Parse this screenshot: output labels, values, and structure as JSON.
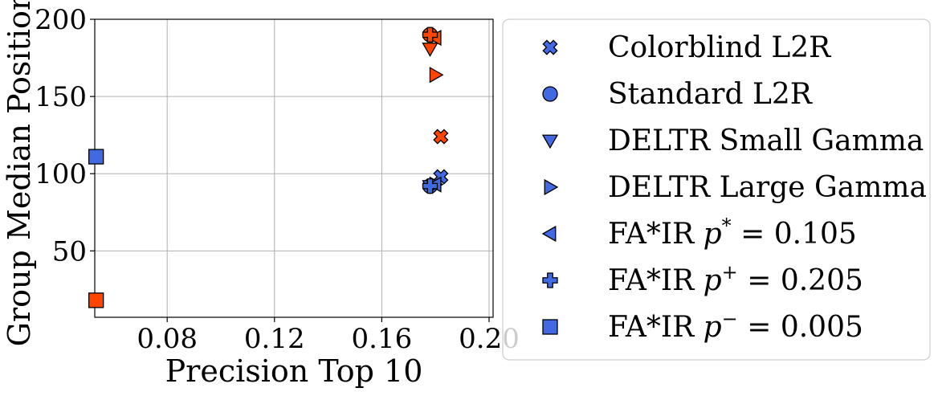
{
  "chart_data": {
    "type": "scatter",
    "title": "",
    "xlabel": "Precision Top 10",
    "ylabel": "Group Median Position",
    "xlim": [
      0.053,
      0.2015
    ],
    "ylim": [
      7,
      200
    ],
    "xticks": [
      0.08,
      0.12,
      0.16,
      0.2
    ],
    "xtick_labels": [
      "0.08",
      "0.12",
      "0.16",
      "0.20"
    ],
    "yticks": [
      50,
      100,
      150,
      200
    ],
    "ytick_labels": [
      "50",
      "100",
      "150",
      "200"
    ],
    "grid": true,
    "legend_position": "outside-right",
    "group_colors": {
      "blue": "#4169e1",
      "red": "#ff4500"
    },
    "series": [
      {
        "name": "Colorblind L2R",
        "marker": "x-filled",
        "points": [
          {
            "x": 0.182,
            "y": 98,
            "group": "blue"
          },
          {
            "x": 0.182,
            "y": 124,
            "group": "red"
          }
        ]
      },
      {
        "name": "Standard L2R",
        "marker": "circle",
        "points": [
          {
            "x": 0.178,
            "y": 92,
            "group": "blue"
          },
          {
            "x": 0.178,
            "y": 190,
            "group": "red"
          }
        ]
      },
      {
        "name": "DELTR Small Gamma",
        "marker": "triangle-down",
        "points": [
          {
            "x": 0.178,
            "y": 92,
            "group": "blue"
          },
          {
            "x": 0.178,
            "y": 181,
            "group": "red"
          }
        ]
      },
      {
        "name": "DELTR Large Gamma",
        "marker": "triangle-right",
        "points": [
          {
            "x": 0.18,
            "y": 93,
            "group": "blue"
          },
          {
            "x": 0.18,
            "y": 164,
            "group": "red"
          }
        ]
      },
      {
        "name": "FA*IR p* = 0.105",
        "legend_text": {
          "prefix": "FA*IR ",
          "var": "p",
          "sup": "*",
          "suffix": " = 0.105"
        },
        "marker": "triangle-left",
        "points": [
          {
            "x": 0.18,
            "y": 93,
            "group": "blue"
          },
          {
            "x": 0.18,
            "y": 188,
            "group": "red"
          }
        ]
      },
      {
        "name": "FA*IR p+ = 0.205",
        "legend_text": {
          "prefix": "FA*IR ",
          "var": "p",
          "sup": "+",
          "suffix": " = 0.205"
        },
        "marker": "plus-filled",
        "points": [
          {
            "x": 0.178,
            "y": 92,
            "group": "blue"
          },
          {
            "x": 0.178,
            "y": 190,
            "group": "red"
          }
        ]
      },
      {
        "name": "FA*IR p- = 0.005",
        "legend_text": {
          "prefix": "FA*IR ",
          "var": "p",
          "sup": "−",
          "suffix": " = 0.005"
        },
        "marker": "square",
        "points": [
          {
            "x": 0.0535,
            "y": 111,
            "group": "blue"
          },
          {
            "x": 0.0535,
            "y": 18,
            "group": "red"
          }
        ]
      }
    ]
  }
}
